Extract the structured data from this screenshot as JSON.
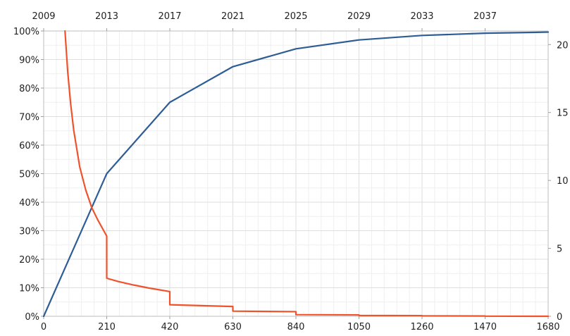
{
  "chart_data": {
    "type": "line",
    "title": "",
    "xlabel": "",
    "ylabel": "",
    "xlim": [
      0,
      1680
    ],
    "ylim_left": [
      0,
      100
    ],
    "ylim_right": [
      0,
      21
    ],
    "grid": true,
    "x_ticks": [
      "0",
      "210",
      "420",
      "630",
      "840",
      "1050",
      "1260",
      "1470",
      "1680"
    ],
    "top_ticks": [
      "2009",
      "2013",
      "2017",
      "2021",
      "2025",
      "2029",
      "2033",
      "2037"
    ],
    "left_ticks": [
      "0%",
      "10%",
      "20%",
      "30%",
      "40%",
      "50%",
      "60%",
      "70%",
      "80%",
      "90%",
      "100%"
    ],
    "right_ticks": [
      "0",
      "5",
      "10",
      "15",
      "20"
    ],
    "series": [
      {
        "axis": "left",
        "color": "#2e5d96",
        "x": [
          0,
          210,
          420,
          630,
          840,
          1050,
          1260,
          1470,
          1680
        ],
        "y": [
          0,
          50,
          75,
          87.5,
          93.75,
          96.875,
          98.4375,
          99.21875,
          99.609375
        ]
      },
      {
        "axis": "right",
        "color": "#f0532b",
        "x": [
          71,
          80,
          90,
          100,
          120,
          140,
          160,
          180,
          200,
          209.9,
          210,
          250,
          300,
          350,
          419.9,
          420,
          629.9,
          630,
          839.9,
          840,
          1049.9,
          1050,
          1259.9,
          1260,
          1469.9,
          1470,
          1680
        ],
        "y": [
          21,
          18.0,
          15.6,
          13.7,
          11.0,
          9.3,
          8.0,
          7.1,
          6.3,
          5.9,
          2.8,
          2.55,
          2.3,
          2.08,
          1.82,
          0.85,
          0.72,
          0.38,
          0.34,
          0.12,
          0.1,
          0.06,
          0.05,
          0.03,
          0.02,
          0.01,
          0.0
        ]
      }
    ]
  }
}
